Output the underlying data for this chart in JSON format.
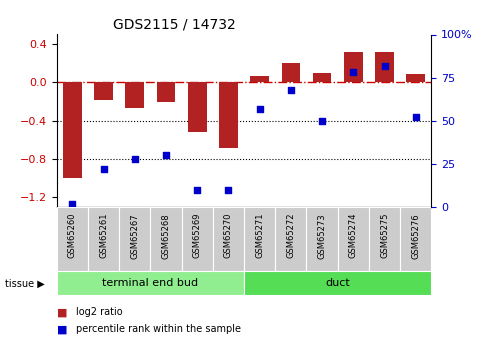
{
  "title": "GDS2115 / 14732",
  "samples": [
    "GSM65260",
    "GSM65261",
    "GSM65267",
    "GSM65268",
    "GSM65269",
    "GSM65270",
    "GSM65271",
    "GSM65272",
    "GSM65273",
    "GSM65274",
    "GSM65275",
    "GSM65276"
  ],
  "log2_ratio": [
    -1.0,
    -0.18,
    -0.27,
    -0.2,
    -0.52,
    -0.68,
    0.07,
    0.2,
    0.1,
    0.32,
    0.32,
    0.09
  ],
  "percentile_rank": [
    2,
    22,
    28,
    30,
    10,
    10,
    57,
    68,
    50,
    78,
    82,
    52
  ],
  "groups": [
    {
      "label": "terminal end bud",
      "start": 0,
      "end": 6,
      "color": "#90ee90"
    },
    {
      "label": "duct",
      "start": 6,
      "end": 12,
      "color": "#55dd55"
    }
  ],
  "ylim_left": [
    -1.3,
    0.5
  ],
  "ylim_right": [
    0,
    100
  ],
  "left_ticks": [
    0.4,
    0.0,
    -0.4,
    -0.8,
    -1.2
  ],
  "right_ticks": [
    100,
    75,
    50,
    25,
    0
  ],
  "hlines": [
    -0.4,
    -0.8
  ],
  "bar_color": "#b22222",
  "scatter_color": "#0000cc",
  "dashed_color": "#cc0000",
  "bar_width": 0.6,
  "background_color": "#ffffff",
  "plot_bg": "#ffffff",
  "label_bg": "#cccccc",
  "tissue_label": "tissue ▶"
}
